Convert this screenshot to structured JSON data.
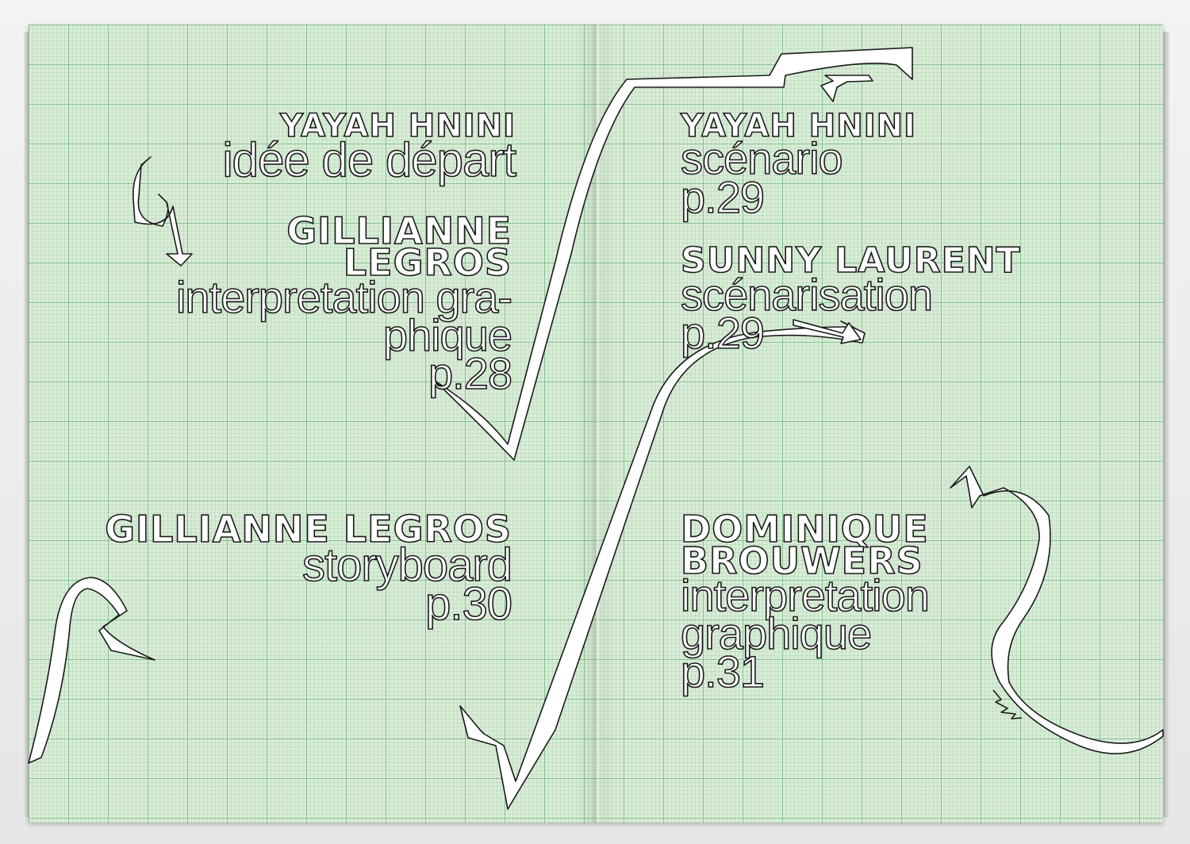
{
  "colors": {
    "paper": "#d9ecd7",
    "grid": "#3ca05a",
    "outline": "#1a1a1a",
    "fill": "#ffffff"
  },
  "left_page": {
    "entry1": {
      "name": "YAYAH HNINI",
      "line1": "idée de départ"
    },
    "entry2": {
      "name_line1": "GILLIANNE",
      "name_line2": "LEGROS",
      "line1": "interpretation gra-",
      "line2": "phique",
      "page": "p.28"
    },
    "entry3": {
      "name": "GILLIANNE LEGROS",
      "line1": "storyboard",
      "page": "p.30"
    }
  },
  "right_page": {
    "entry1": {
      "name": "YAYAH HNINI",
      "line1": "scénario",
      "page": "p.29"
    },
    "entry2": {
      "name": "SUNNY LAURENT",
      "line1": "scénarisation",
      "page": "p.29"
    },
    "entry3": {
      "name_line1": "DOMINIQUE",
      "name_line2": "BROUWERS",
      "line1": "interpretation",
      "line2": "graphique",
      "page": "p.31"
    }
  },
  "icons": [
    "arrow-curve",
    "arrow-curve",
    "arrow-curve"
  ]
}
